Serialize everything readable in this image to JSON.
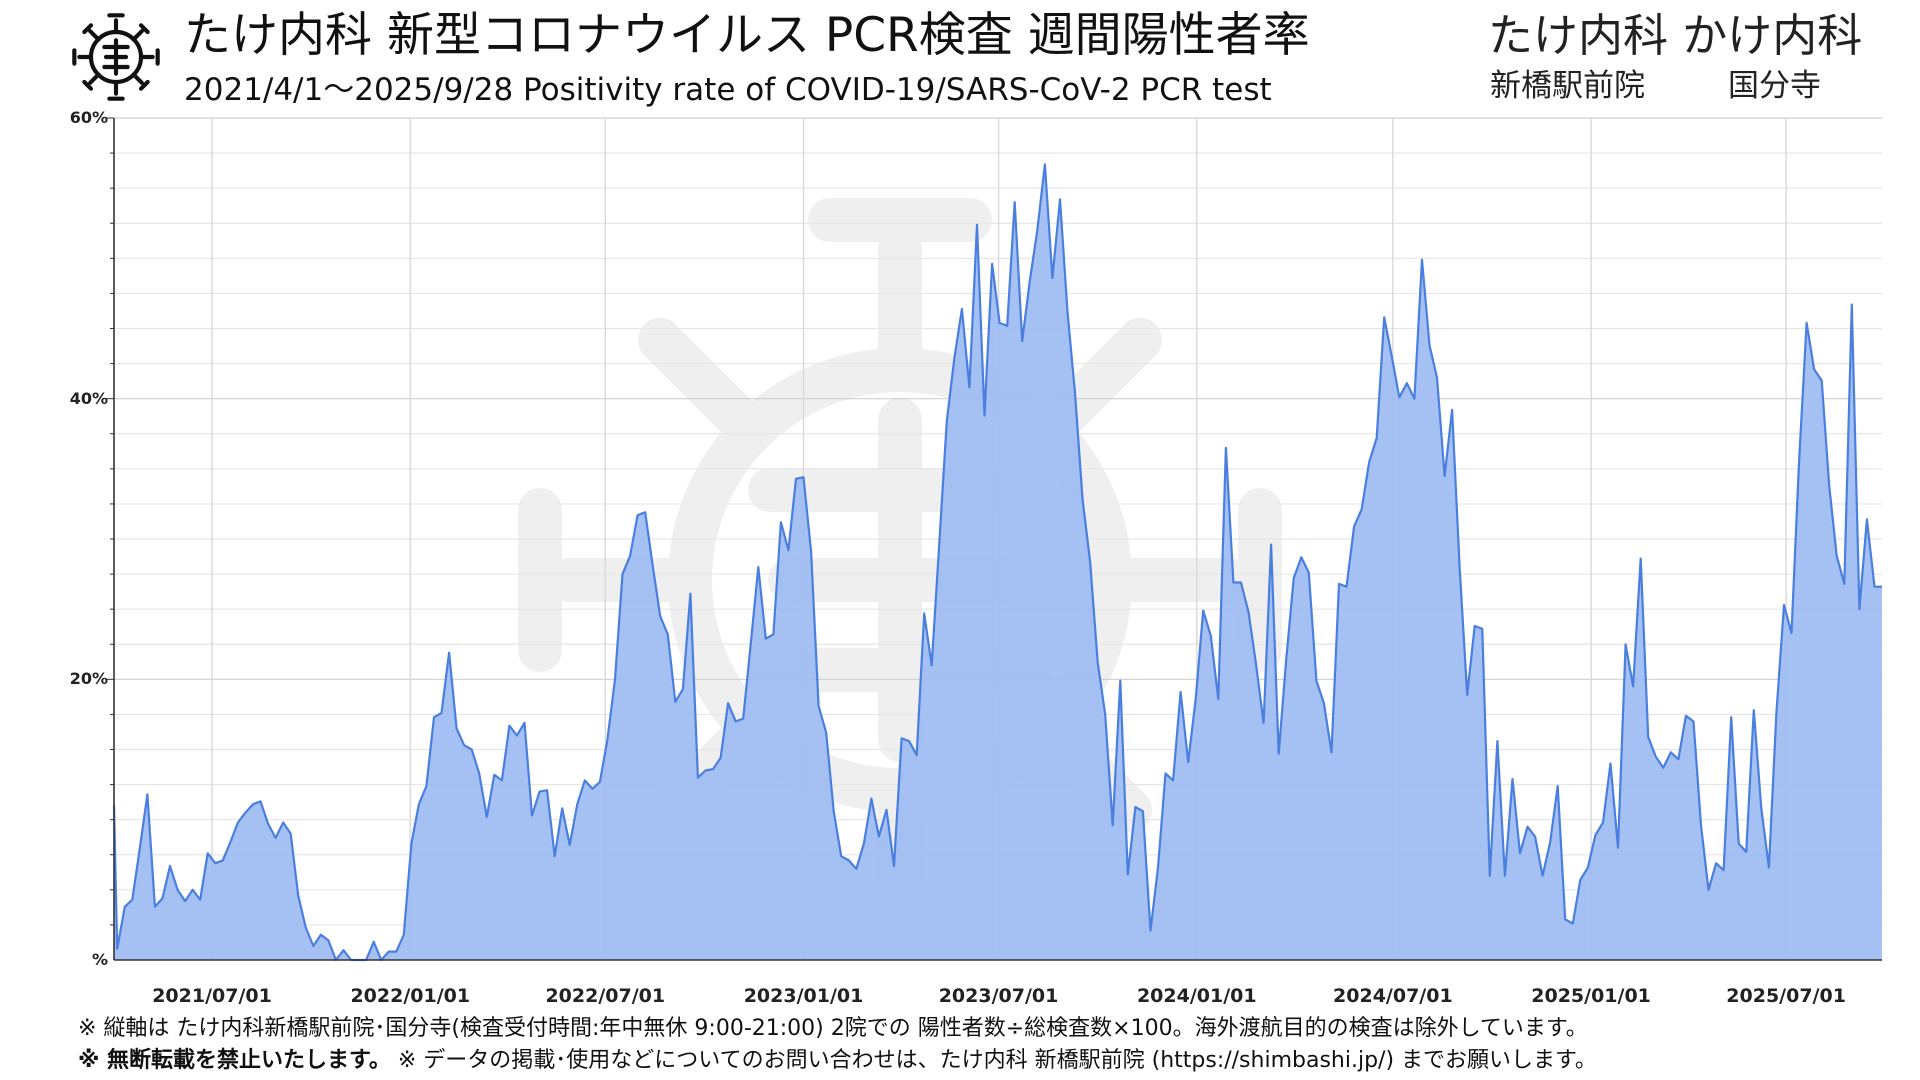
{
  "header": {
    "title": "たけ内科 新型コロナウイルス PCR検査 週間陽性者率",
    "subtitle": "2021/4/1〜2025/9/28  Positivity rate of COVID-19/SARS-CoV-2 PCR test",
    "clinics": "たけ内科 かけ内科",
    "locations": [
      "新橋駅前院",
      "国分寺"
    ]
  },
  "footnotes": {
    "line1": "※ 縦軸は たけ内科新橋駅前院･国分寺(検査受付時間:年中無休 9:00-21:00) 2院での 陽性者数÷総検査数×100。海外渡航目的の検査は除外しています。",
    "line2_bold": "※ 無断転載を禁止いたします。",
    "line2_rest": "※ データの掲載･使用などについてのお問い合わせは、たけ内科 新橋駅前院 (https://shimbashi.jp/) までお願いします。"
  },
  "colors": {
    "line": "#4a7fe0",
    "fill": "#9dbcf2",
    "grid": "#d9d9d9",
    "watermark": "#efefef"
  },
  "chart_data": {
    "type": "area",
    "title": "たけ内科 新型コロナウイルス PCR検査 週間陽性者率",
    "subtitle": "2021/4/1〜2025/9/28  Positivity rate of COVID-19/SARS-CoV-2 PCR test",
    "xlabel": "",
    "ylabel": "",
    "x_range": [
      "2021-04-01",
      "2025-09-28"
    ],
    "ylim": [
      0,
      60
    ],
    "y_ticks": [
      0,
      20,
      40,
      60
    ],
    "y_tick_labels": [
      "%",
      "20%",
      "40%",
      "60%"
    ],
    "x_ticks": [
      "2021-07-01",
      "2022-01-01",
      "2022-07-01",
      "2023-01-01",
      "2023-07-01",
      "2024-01-01",
      "2024-07-01",
      "2025-01-01",
      "2025-07-01"
    ],
    "x_tick_labels": [
      "2021/07/01",
      "2022/01/01",
      "2022/07/01",
      "2023/01/01",
      "2023/07/01",
      "2024/01/01",
      "2024/07/01",
      "2025/01/01",
      "2025/07/01"
    ],
    "grid": true,
    "legend": "none",
    "series": [
      {
        "points": [
          [
            "2021-04-01",
            11.0
          ],
          [
            "2021-04-04",
            0.8
          ],
          [
            "2021-04-11",
            3.8
          ],
          [
            "2021-04-18",
            4.3
          ],
          [
            "2021-04-25",
            8.0
          ],
          [
            "2021-05-02",
            11.8
          ],
          [
            "2021-05-09",
            3.8
          ],
          [
            "2021-05-16",
            4.4
          ],
          [
            "2021-05-23",
            6.7
          ],
          [
            "2021-05-30",
            5.0
          ],
          [
            "2021-06-06",
            4.2
          ],
          [
            "2021-06-13",
            5.0
          ],
          [
            "2021-06-20",
            4.3
          ],
          [
            "2021-06-27",
            7.6
          ],
          [
            "2021-07-04",
            6.9
          ],
          [
            "2021-07-11",
            7.1
          ],
          [
            "2021-07-18",
            8.4
          ],
          [
            "2021-07-25",
            9.8
          ],
          [
            "2021-08-01",
            10.5
          ],
          [
            "2021-08-08",
            11.1
          ],
          [
            "2021-08-15",
            11.3
          ],
          [
            "2021-08-22",
            9.7
          ],
          [
            "2021-08-29",
            8.7
          ],
          [
            "2021-09-05",
            9.8
          ],
          [
            "2021-09-12",
            9.0
          ],
          [
            "2021-09-19",
            4.6
          ],
          [
            "2021-09-26",
            2.3
          ],
          [
            "2021-10-03",
            1.0
          ],
          [
            "2021-10-10",
            1.8
          ],
          [
            "2021-10-17",
            1.4
          ],
          [
            "2021-10-24",
            0.0
          ],
          [
            "2021-10-31",
            0.7
          ],
          [
            "2021-11-07",
            0.0
          ],
          [
            "2021-11-14",
            0.0
          ],
          [
            "2021-11-21",
            0.0
          ],
          [
            "2021-11-28",
            1.3
          ],
          [
            "2021-12-05",
            0.0
          ],
          [
            "2021-12-12",
            0.6
          ],
          [
            "2021-12-19",
            0.6
          ],
          [
            "2021-12-26",
            1.8
          ],
          [
            "2022-01-02",
            8.3
          ],
          [
            "2022-01-09",
            11.1
          ],
          [
            "2022-01-16",
            12.4
          ],
          [
            "2022-01-23",
            17.3
          ],
          [
            "2022-01-30",
            17.6
          ],
          [
            "2022-02-06",
            21.9
          ],
          [
            "2022-02-13",
            16.5
          ],
          [
            "2022-02-20",
            15.3
          ],
          [
            "2022-02-27",
            15.0
          ],
          [
            "2022-03-06",
            13.3
          ],
          [
            "2022-03-13",
            10.2
          ],
          [
            "2022-03-20",
            13.2
          ],
          [
            "2022-03-27",
            12.8
          ],
          [
            "2022-04-03",
            16.7
          ],
          [
            "2022-04-10",
            16.0
          ],
          [
            "2022-04-17",
            16.9
          ],
          [
            "2022-04-24",
            10.3
          ],
          [
            "2022-05-01",
            12.0
          ],
          [
            "2022-05-08",
            12.1
          ],
          [
            "2022-05-15",
            7.4
          ],
          [
            "2022-05-22",
            10.8
          ],
          [
            "2022-05-29",
            8.2
          ],
          [
            "2022-06-05",
            11.1
          ],
          [
            "2022-06-12",
            12.8
          ],
          [
            "2022-06-19",
            12.2
          ],
          [
            "2022-06-26",
            12.7
          ],
          [
            "2022-07-03",
            15.7
          ],
          [
            "2022-07-10",
            20.0
          ],
          [
            "2022-07-17",
            27.5
          ],
          [
            "2022-07-24",
            28.8
          ],
          [
            "2022-07-31",
            31.7
          ],
          [
            "2022-08-07",
            31.9
          ],
          [
            "2022-08-14",
            28.1
          ],
          [
            "2022-08-21",
            24.5
          ],
          [
            "2022-08-28",
            23.2
          ],
          [
            "2022-09-04",
            18.4
          ],
          [
            "2022-09-11",
            19.3
          ],
          [
            "2022-09-18",
            26.1
          ],
          [
            "2022-09-25",
            13.0
          ],
          [
            "2022-10-02",
            13.5
          ],
          [
            "2022-10-09",
            13.6
          ],
          [
            "2022-10-16",
            14.4
          ],
          [
            "2022-10-23",
            18.3
          ],
          [
            "2022-10-30",
            17.0
          ],
          [
            "2022-11-06",
            17.2
          ],
          [
            "2022-11-13",
            22.5
          ],
          [
            "2022-11-20",
            28.0
          ],
          [
            "2022-11-27",
            22.9
          ],
          [
            "2022-12-04",
            23.2
          ],
          [
            "2022-12-11",
            31.2
          ],
          [
            "2022-12-18",
            29.2
          ],
          [
            "2022-12-25",
            34.3
          ],
          [
            "2023-01-01",
            34.4
          ],
          [
            "2023-01-08",
            29.1
          ],
          [
            "2023-01-15",
            18.1
          ],
          [
            "2023-01-22",
            16.2
          ],
          [
            "2023-01-29",
            10.6
          ],
          [
            "2023-02-05",
            7.4
          ],
          [
            "2023-02-12",
            7.1
          ],
          [
            "2023-02-19",
            6.5
          ],
          [
            "2023-02-26",
            8.3
          ],
          [
            "2023-03-05",
            11.5
          ],
          [
            "2023-03-12",
            8.8
          ],
          [
            "2023-03-19",
            10.7
          ],
          [
            "2023-03-26",
            6.7
          ],
          [
            "2023-04-02",
            15.8
          ],
          [
            "2023-04-09",
            15.6
          ],
          [
            "2023-04-16",
            14.6
          ],
          [
            "2023-04-23",
            24.7
          ],
          [
            "2023-04-30",
            21.0
          ],
          [
            "2023-05-07",
            29.7
          ],
          [
            "2023-05-14",
            38.4
          ],
          [
            "2023-05-21",
            42.9
          ],
          [
            "2023-05-28",
            46.4
          ],
          [
            "2023-06-04",
            40.8
          ],
          [
            "2023-06-11",
            52.4
          ],
          [
            "2023-06-18",
            38.8
          ],
          [
            "2023-06-25",
            49.6
          ],
          [
            "2023-07-02",
            45.4
          ],
          [
            "2023-07-09",
            45.2
          ],
          [
            "2023-07-16",
            54.0
          ],
          [
            "2023-07-23",
            44.1
          ],
          [
            "2023-07-30",
            48.4
          ],
          [
            "2023-08-06",
            52.0
          ],
          [
            "2023-08-13",
            56.7
          ],
          [
            "2023-08-20",
            48.6
          ],
          [
            "2023-08-27",
            54.2
          ],
          [
            "2023-09-03",
            46.2
          ],
          [
            "2023-09-10",
            40.4
          ],
          [
            "2023-09-17",
            32.8
          ],
          [
            "2023-09-24",
            28.4
          ],
          [
            "2023-10-01",
            21.2
          ],
          [
            "2023-10-08",
            17.5
          ],
          [
            "2023-10-15",
            9.6
          ],
          [
            "2023-10-22",
            19.9
          ],
          [
            "2023-10-29",
            6.1
          ],
          [
            "2023-11-05",
            10.9
          ],
          [
            "2023-11-12",
            10.6
          ],
          [
            "2023-11-19",
            2.1
          ],
          [
            "2023-11-26",
            6.6
          ],
          [
            "2023-12-03",
            13.3
          ],
          [
            "2023-12-10",
            12.8
          ],
          [
            "2023-12-17",
            19.1
          ],
          [
            "2023-12-24",
            14.1
          ],
          [
            "2023-12-31",
            18.6
          ],
          [
            "2024-01-07",
            24.9
          ],
          [
            "2024-01-14",
            23.1
          ],
          [
            "2024-01-21",
            18.6
          ],
          [
            "2024-01-28",
            36.5
          ],
          [
            "2024-02-04",
            26.9
          ],
          [
            "2024-02-11",
            26.9
          ],
          [
            "2024-02-18",
            24.8
          ],
          [
            "2024-02-25",
            21.1
          ],
          [
            "2024-03-03",
            16.9
          ],
          [
            "2024-03-10",
            29.6
          ],
          [
            "2024-03-17",
            14.7
          ],
          [
            "2024-03-24",
            21.4
          ],
          [
            "2024-03-31",
            27.2
          ],
          [
            "2024-04-07",
            28.7
          ],
          [
            "2024-04-14",
            27.6
          ],
          [
            "2024-04-21",
            19.9
          ],
          [
            "2024-04-28",
            18.3
          ],
          [
            "2024-05-05",
            14.8
          ],
          [
            "2024-05-12",
            26.8
          ],
          [
            "2024-05-19",
            26.6
          ],
          [
            "2024-05-26",
            30.9
          ],
          [
            "2024-06-02",
            32.1
          ],
          [
            "2024-06-09",
            35.5
          ],
          [
            "2024-06-16",
            37.2
          ],
          [
            "2024-06-23",
            45.8
          ],
          [
            "2024-06-30",
            43.0
          ],
          [
            "2024-07-07",
            40.1
          ],
          [
            "2024-07-14",
            41.1
          ],
          [
            "2024-07-21",
            40.0
          ],
          [
            "2024-07-28",
            49.9
          ],
          [
            "2024-08-04",
            43.8
          ],
          [
            "2024-08-11",
            41.5
          ],
          [
            "2024-08-18",
            34.5
          ],
          [
            "2024-08-25",
            39.2
          ],
          [
            "2024-09-01",
            27.9
          ],
          [
            "2024-09-08",
            18.9
          ],
          [
            "2024-09-15",
            23.8
          ],
          [
            "2024-09-22",
            23.6
          ],
          [
            "2024-09-29",
            6.0
          ],
          [
            "2024-10-06",
            15.6
          ],
          [
            "2024-10-13",
            6.0
          ],
          [
            "2024-10-20",
            12.9
          ],
          [
            "2024-10-27",
            7.6
          ],
          [
            "2024-11-03",
            9.5
          ],
          [
            "2024-11-10",
            8.8
          ],
          [
            "2024-11-17",
            6.0
          ],
          [
            "2024-11-24",
            8.4
          ],
          [
            "2024-12-01",
            12.4
          ],
          [
            "2024-12-08",
            2.9
          ],
          [
            "2024-12-15",
            2.6
          ],
          [
            "2024-12-22",
            5.7
          ],
          [
            "2024-12-29",
            6.6
          ],
          [
            "2025-01-05",
            8.9
          ],
          [
            "2025-01-12",
            9.8
          ],
          [
            "2025-01-19",
            14.0
          ],
          [
            "2025-01-26",
            8.0
          ],
          [
            "2025-02-02",
            22.5
          ],
          [
            "2025-02-09",
            19.5
          ],
          [
            "2025-02-16",
            28.6
          ],
          [
            "2025-02-23",
            15.9
          ],
          [
            "2025-03-02",
            14.5
          ],
          [
            "2025-03-09",
            13.7
          ],
          [
            "2025-03-16",
            14.8
          ],
          [
            "2025-03-23",
            14.3
          ],
          [
            "2025-03-30",
            17.4
          ],
          [
            "2025-04-06",
            17.0
          ],
          [
            "2025-04-13",
            9.6
          ],
          [
            "2025-04-20",
            5.0
          ],
          [
            "2025-04-27",
            6.9
          ],
          [
            "2025-05-04",
            6.4
          ],
          [
            "2025-05-11",
            17.3
          ],
          [
            "2025-05-18",
            8.3
          ],
          [
            "2025-05-25",
            7.7
          ],
          [
            "2025-06-01",
            17.8
          ],
          [
            "2025-06-08",
            10.8
          ],
          [
            "2025-06-15",
            6.6
          ],
          [
            "2025-06-22",
            17.6
          ],
          [
            "2025-06-29",
            25.3
          ],
          [
            "2025-07-06",
            23.3
          ],
          [
            "2025-07-13",
            35.4
          ],
          [
            "2025-07-20",
            45.4
          ],
          [
            "2025-07-27",
            42.1
          ],
          [
            "2025-08-03",
            41.3
          ],
          [
            "2025-08-10",
            33.8
          ],
          [
            "2025-08-17",
            28.8
          ],
          [
            "2025-08-24",
            26.8
          ],
          [
            "2025-08-31",
            46.7
          ],
          [
            "2025-09-07",
            25.0
          ],
          [
            "2025-09-14",
            31.4
          ],
          [
            "2025-09-21",
            26.6
          ]
        ]
      }
    ]
  }
}
